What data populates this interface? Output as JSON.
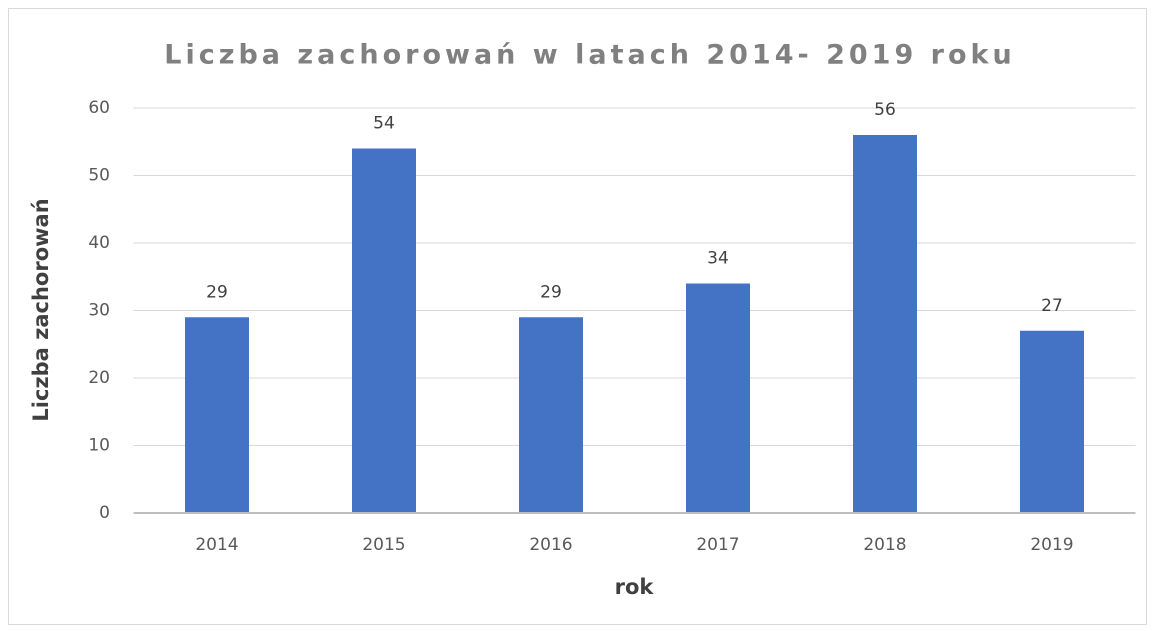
{
  "chart_data": {
    "type": "bar",
    "title": "Liczba zachorowań w latach 2014- 2019 roku",
    "x_label": "rok",
    "y_label": "Liczba zachorowań",
    "categories": [
      "2014",
      "2015",
      "2016",
      "2017",
      "2018",
      "2019"
    ],
    "values": [
      29,
      54,
      29,
      34,
      56,
      27
    ],
    "color": "#4472c4",
    "ylim": [
      0,
      60
    ],
    "yticks": [
      0,
      10,
      20,
      30,
      40,
      50,
      60
    ],
    "grid": true
  }
}
